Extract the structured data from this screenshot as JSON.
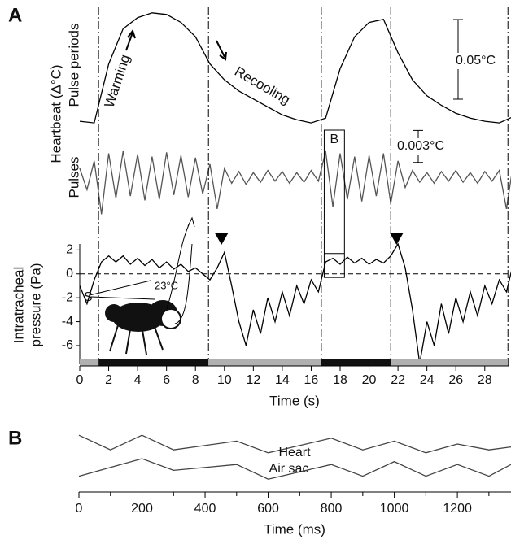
{
  "chart_data": [
    {
      "type": "line",
      "panel": "A",
      "ylabel": "Pulse periods",
      "group_label": "Heartbeat (Δ°C)",
      "xlim": [
        0,
        29.7
      ],
      "ylim": [
        0,
        0.075
      ],
      "x": [
        0,
        1,
        2,
        3,
        4,
        5,
        6,
        7,
        8,
        9,
        10,
        11,
        12,
        13,
        14,
        15,
        16,
        17,
        18,
        19,
        20,
        21,
        22,
        23,
        24,
        25,
        26,
        27,
        28,
        29,
        30
      ],
      "series": [
        {
          "color": "#000000",
          "values": [
            0.003,
            0.002,
            0.039,
            0.061,
            0.068,
            0.071,
            0.07,
            0.065,
            0.056,
            0.039,
            0.029,
            0.022,
            0.017,
            0.012,
            0.007,
            0.004,
            0.002,
            0.005,
            0.036,
            0.056,
            0.065,
            0.067,
            0.046,
            0.029,
            0.019,
            0.013,
            0.008,
            0.005,
            0.003,
            0.002,
            0.006
          ]
        }
      ],
      "scale_bar": {
        "value": 0.05,
        "label": "0.05°C"
      },
      "annotations": [
        "Warming",
        "Recooling"
      ]
    },
    {
      "type": "line",
      "ylabel": "Pulses",
      "xlim": [
        0,
        29.7
      ],
      "ylim": [
        -0.004,
        0.004
      ],
      "x": [
        0,
        0.5,
        1,
        1.5,
        2,
        2.5,
        3,
        3.5,
        4,
        4.5,
        5,
        5.5,
        6,
        6.5,
        7,
        7.5,
        8,
        8.5,
        9,
        9.5,
        10,
        10.5,
        11,
        11.5,
        12,
        12.5,
        13,
        13.5,
        14,
        14.5,
        15,
        15.5,
        16,
        16.5,
        17,
        17.5,
        18,
        18.5,
        19,
        19.5,
        20,
        20.5,
        21,
        21.5,
        22,
        22.5,
        23,
        23.5,
        24,
        24.5,
        25,
        25.5,
        26,
        26.5,
        27,
        27.5,
        28,
        28.5,
        29,
        29.5,
        30
      ],
      "series": [
        {
          "color": "#555555",
          "values": [
            0.0008,
            -0.0012,
            0.0015,
            -0.0035,
            0.0022,
            -0.002,
            0.0024,
            -0.0018,
            0.0021,
            -0.0022,
            0.0019,
            -0.0021,
            0.0023,
            -0.0017,
            0.002,
            -0.0019,
            0.0018,
            -0.0016,
            0.0012,
            -0.003,
            0.0008,
            -0.0006,
            0.0005,
            -0.0007,
            0.0004,
            -0.0005,
            0.0006,
            -0.0004,
            0.0005,
            -0.0006,
            0.0004,
            -0.0005,
            0.0006,
            -0.0004,
            0.0024,
            -0.0028,
            0.0022,
            -0.0021,
            0.0019,
            -0.0023,
            0.002,
            -0.0018,
            0.0022,
            -0.0025,
            0.0015,
            -0.001,
            0.0006,
            -0.0005,
            0.0004,
            -0.0006,
            0.0005,
            -0.0004,
            0.0006,
            -0.0005,
            0.0004,
            -0.0006,
            0.0005,
            -0.0004,
            0.0006,
            -0.003,
            0.0015
          ]
        }
      ],
      "scale_bar": {
        "value": 0.003,
        "label": "0.003°C"
      }
    },
    {
      "type": "line",
      "ylabel": [
        "Intratracheal",
        "pressure (Pa)"
      ],
      "xlabel": "Time (s)",
      "xlim": [
        0,
        29.7
      ],
      "ylim": [
        -7.5,
        2.5
      ],
      "xticks": [
        0,
        2,
        4,
        6,
        8,
        10,
        12,
        14,
        16,
        18,
        20,
        22,
        24,
        26,
        28
      ],
      "yticks": [
        -6,
        -4,
        -2,
        0,
        2
      ],
      "x": [
        0,
        0.5,
        1,
        1.5,
        2,
        2.5,
        3,
        3.5,
        4,
        4.5,
        5,
        5.5,
        6,
        6.5,
        7,
        7.5,
        8,
        8.5,
        9,
        9.5,
        10,
        10.5,
        11,
        11.5,
        12,
        12.5,
        13,
        13.5,
        14,
        14.5,
        15,
        15.5,
        16,
        16.5,
        17,
        17.5,
        18,
        18.5,
        19,
        19.5,
        20,
        20.5,
        21,
        21.5,
        22,
        22.5,
        23,
        23.5,
        24,
        24.5,
        25,
        25.5,
        26,
        26.5,
        27,
        27.5,
        28,
        28.5,
        29,
        29.5,
        30
      ],
      "series": [
        {
          "color": "#000000",
          "values": [
            -1,
            -2.5,
            -0.5,
            1,
            1.5,
            1,
            1.5,
            0.8,
            1.3,
            0.7,
            1.2,
            0.5,
            1,
            0.4,
            0.8,
            0.2,
            0.5,
            0,
            -0.5,
            0.5,
            1.8,
            -1,
            -4,
            -6,
            -3,
            -5,
            -2,
            -4,
            -1.5,
            -3.5,
            -1,
            -2.5,
            -0.5,
            -1.5,
            1,
            1.3,
            0.8,
            1.4,
            0.9,
            1.3,
            0.8,
            1.2,
            0.9,
            1.5,
            2.5,
            0.5,
            -3,
            -7.5,
            -4,
            -6,
            -2.5,
            -5,
            -2,
            -4,
            -1.5,
            -3.5,
            -1,
            -2.5,
            -0.5,
            -1.5,
            1
          ]
        }
      ],
      "events": [
        1.3,
        8.9,
        16.7,
        21.5,
        29.6
      ],
      "phase_colors": [
        "#b0b0b0",
        "#111111"
      ],
      "markers": [
        9.8,
        21.9
      ],
      "inset": {
        "label": "B",
        "x": [
          16.9,
          18.3
        ],
        "y": [
          -0.3,
          1.7
        ]
      },
      "annotations": [
        "S",
        "23°C"
      ]
    },
    {
      "type": "line",
      "panel": "B",
      "xlabel": "Time (ms)",
      "xlim": [
        0,
        1370
      ],
      "ylim": [
        0,
        1
      ],
      "xticks": [
        0,
        200,
        400,
        600,
        800,
        1000,
        1200
      ],
      "xminorticks": [
        100,
        300,
        500,
        700,
        900,
        1100,
        1300
      ],
      "series": [
        {
          "name": "Heart",
          "color": "#444444",
          "x": [
            0,
            100,
            200,
            300,
            500,
            600,
            800,
            900,
            1000,
            1100,
            1200,
            1300,
            1370
          ],
          "values": [
            0.9,
            0.65,
            0.9,
            0.65,
            0.8,
            0.6,
            0.85,
            0.65,
            0.8,
            0.6,
            0.75,
            0.65,
            0.7
          ]
        },
        {
          "name": "Air sac",
          "color": "#444444",
          "x": [
            0,
            100,
            200,
            300,
            500,
            600,
            800,
            900,
            1000,
            1100,
            1200,
            1300,
            1370
          ],
          "values": [
            0.2,
            0.35,
            0.5,
            0.3,
            0.4,
            0.15,
            0.4,
            0.2,
            0.45,
            0.2,
            0.4,
            0.2,
            0.4
          ]
        }
      ]
    }
  ]
}
